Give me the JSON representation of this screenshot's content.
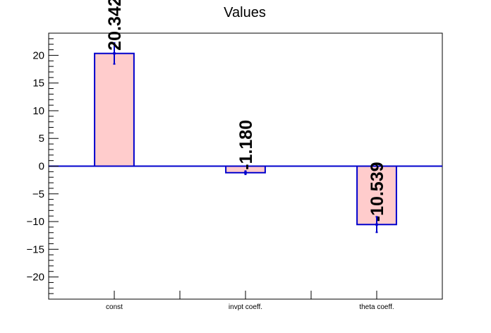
{
  "chart_data": {
    "type": "bar",
    "title": "Values",
    "xlabel": "",
    "ylabel": "",
    "categories": [
      "const",
      "invpt coeff.",
      "theta coeff."
    ],
    "values": [
      20.342,
      -1.18,
      -10.539
    ],
    "value_labels": [
      "20.342",
      "-1.180",
      "-10.539"
    ],
    "errors": [
      1.9,
      0.3,
      1.4
    ],
    "ylim": [
      -24,
      24
    ],
    "yticks": [
      -20,
      -15,
      -10,
      -5,
      0,
      5,
      10,
      15,
      20
    ],
    "ytick_labels": [
      "−20",
      "−15",
      "−10",
      "−5",
      "0",
      "5",
      "10",
      "15",
      "20"
    ],
    "grid": false,
    "legend": "none",
    "colors": {
      "bar_fill": "#ffcccc",
      "bar_edge": "#0000cc",
      "zero_line": "#0000cc",
      "axis": "#000000"
    }
  }
}
